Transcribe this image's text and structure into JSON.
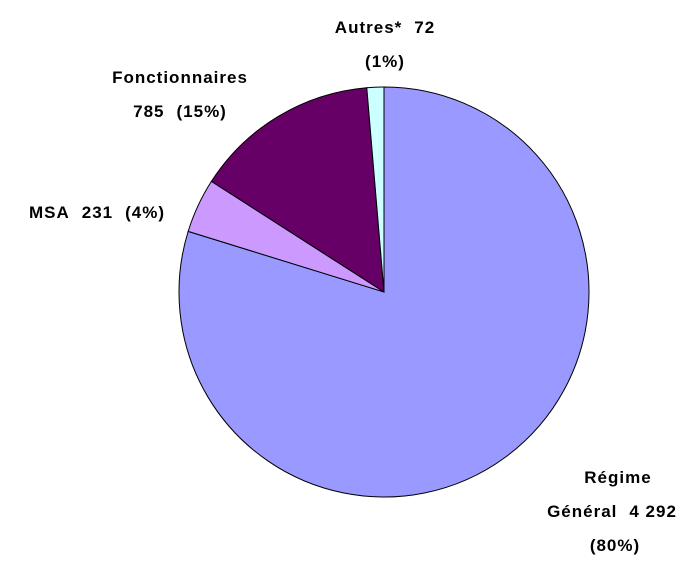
{
  "chart_data": {
    "type": "pie",
    "categories": [
      "Régime Général",
      "MSA",
      "Fonctionnaires",
      "Autres*"
    ],
    "values": [
      4292,
      231,
      785,
      72
    ],
    "value_labels": [
      "4 292",
      "231",
      "785",
      "72"
    ],
    "percent_labels": [
      "(80%)",
      "(4%)",
      "(15%)",
      "(1%)"
    ],
    "colors": [
      "#9999ff",
      "#cc99ff",
      "#660066",
      "#ccffff"
    ]
  }
}
